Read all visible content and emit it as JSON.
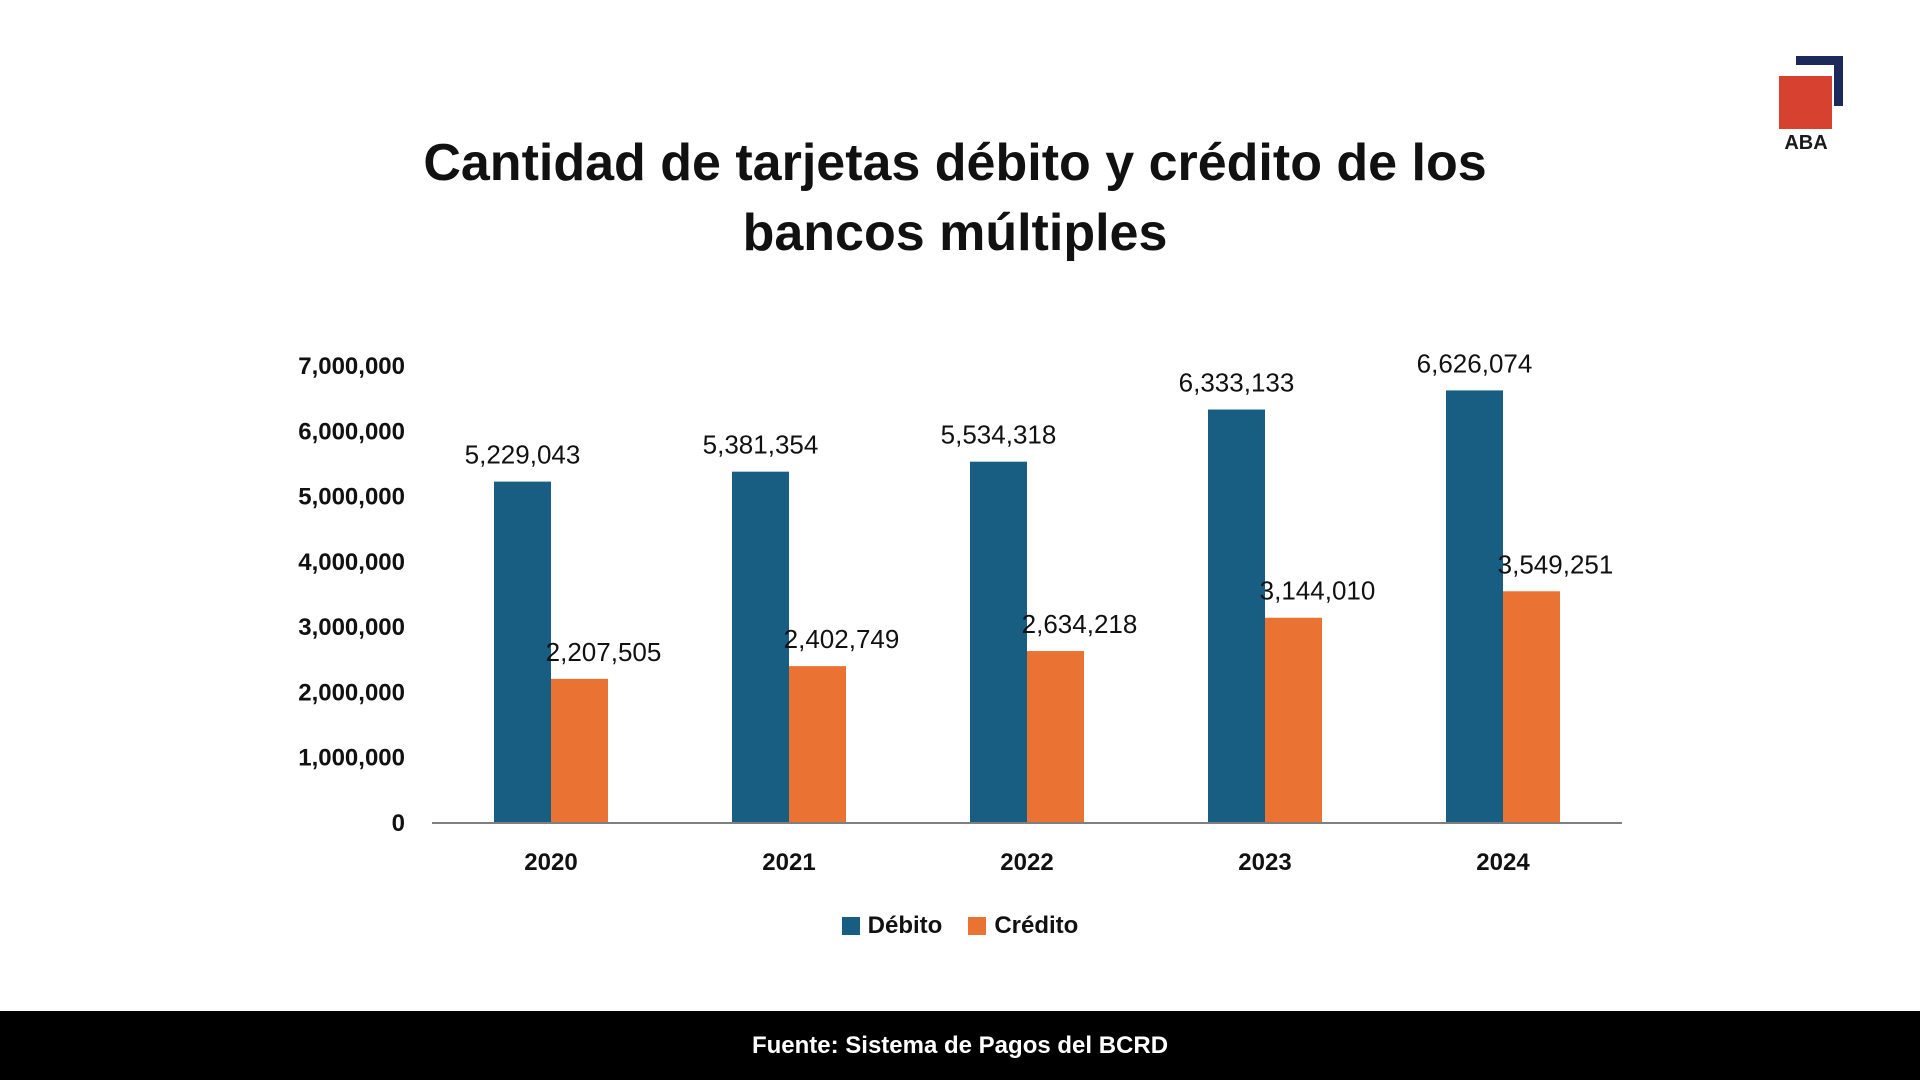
{
  "title_line1": "Cantidad de tarjetas débito y crédito de los",
  "title_line2": "bancos múltiples",
  "logo": {
    "text": "ABA",
    "colors": {
      "navy": "#1b2a5a",
      "red": "#d7412f"
    }
  },
  "chart_data": {
    "type": "bar",
    "title": "Cantidad de tarjetas débito y crédito de los bancos múltiples",
    "categories": [
      "2020",
      "2021",
      "2022",
      "2023",
      "2024"
    ],
    "series": [
      {
        "name": "Débito",
        "color": "#175e82",
        "values": [
          5229043,
          5381354,
          5534318,
          6333133,
          6626074
        ],
        "labels": [
          "5,229,043",
          "5,381,354",
          "5,534,318",
          "6,333,133",
          "6,626,074"
        ]
      },
      {
        "name": "Crédito",
        "color": "#ea7333",
        "values": [
          2207505,
          2402749,
          2634218,
          3144010,
          3549251
        ],
        "labels": [
          "2,207,505",
          "2,402,749",
          "2,634,218",
          "3,144,010",
          "3,549,251"
        ]
      }
    ],
    "ylim": [
      0,
      7000000
    ],
    "yticks": [
      0,
      1000000,
      2000000,
      3000000,
      4000000,
      5000000,
      6000000,
      7000000
    ],
    "ytick_labels": [
      "0",
      "1,000,000",
      "2,000,000",
      "3,000,000",
      "4,000,000",
      "5,000,000",
      "6,000,000",
      "7,000,000"
    ],
    "grid": false,
    "legend_position": "bottom-center"
  },
  "footer": "Fuente: Sistema de Pagos del BCRD"
}
